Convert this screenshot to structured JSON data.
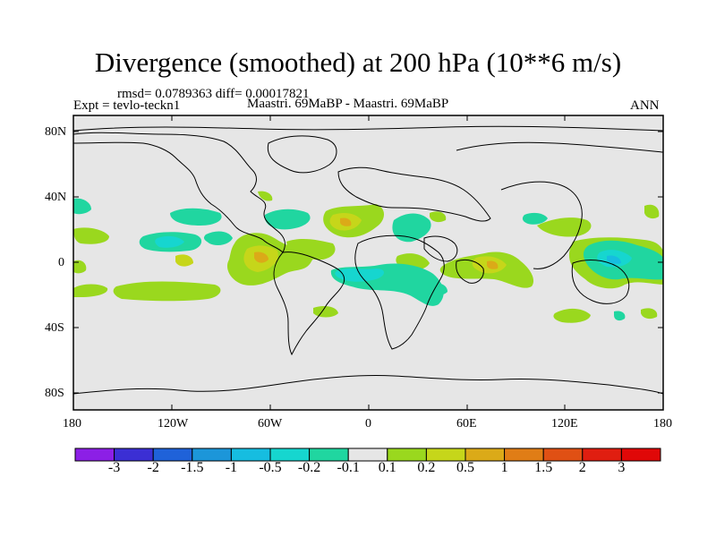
{
  "title": "Divergence (smoothed) at 200 hPa (10**6 m/s)",
  "stats": "rmsd= 0.0789363 diff= 0.00017821",
  "expt": "Expt = tevlo-teckn1",
  "comparison": "Maastri.  69MaBP - Maastri.  69MaBP",
  "season": "ANN",
  "y_axis_labels": [
    "80N",
    "40N",
    "0",
    "40S",
    "80S"
  ],
  "x_axis_labels": [
    "180",
    "120W",
    "60W",
    "0",
    "60E",
    "120E",
    "180"
  ],
  "colorbar": {
    "labels": [
      "-3",
      "-2",
      "-1.5",
      "-1",
      "-0.5",
      "-0.2",
      "-0.1",
      "0.1",
      "0.2",
      "0.5",
      "1",
      "1.5",
      "2",
      "3"
    ],
    "colors": [
      "#8c1fe6",
      "#3b2fd4",
      "#1f62d9",
      "#1c96d9",
      "#16bde0",
      "#16d6cf",
      "#20d6a0",
      "#e6e6e6",
      "#9ad81e",
      "#c6d61a",
      "#dbaa18",
      "#e07d16",
      "#e05014",
      "#e01e10",
      "#e00808"
    ]
  },
  "colors": {
    "background": "#e6e6e6",
    "pos1": "#9ad81e",
    "pos2": "#c6d61a",
    "pos3": "#dbaa18",
    "neg1": "#20d6a0",
    "neg2": "#16d6cf",
    "neg3": "#16bde0"
  }
}
